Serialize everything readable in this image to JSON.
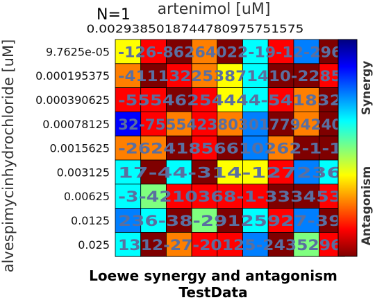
{
  "chart_data": {
    "type": "heatmap",
    "annotation": "N=1",
    "xlabel": "artenimol [uM]",
    "ylabel": "alvespimycinhydrochloride [uM]",
    "caption_line1": "Loewe synergy and antagonism",
    "caption_line2": "TestData",
    "x_tick_labels": [
      "0.00...",
      "0.00...",
      "0.00...",
      "0.00...",
      "0.00...",
      "0.00...",
      "0.0...",
      "0.57",
      "0.575"
    ],
    "x_tick_label_overlap": "0.0029385018744780975751575",
    "y_tick_labels": [
      "9.7625e-05",
      "0.000195375",
      "0.000390625",
      "0.00078125",
      "0.0015625",
      "0.003125",
      "0.00625",
      "0.0125",
      "0.025"
    ],
    "colorbar_labels": {
      "top": "Synergy",
      "bottom": "Antagonism"
    },
    "color_scale": [
      "#00007f",
      "#0000ff",
      "#007fff",
      "#00ffff",
      "#7fff7f",
      "#ffff00",
      "#ff7f00",
      "#ff0000",
      "#7f0000"
    ],
    "cell_text_color": "#5a6fa0",
    "cell_values": [
      [
        "-12",
        "6",
        "-8",
        "6",
        "26",
        "40",
        "22",
        "-19",
        "-12",
        "2",
        "96"
      ],
      [
        "-41",
        "11",
        "32",
        "25",
        "38",
        "7",
        "14",
        "10",
        "-22",
        "85"
      ],
      [
        "-55",
        "54",
        "62",
        "5",
        "44",
        "4",
        "-54",
        "18",
        "32"
      ],
      [
        "32",
        "-75",
        "55",
        "42",
        "38",
        "0",
        "30",
        "17",
        "-79",
        "24",
        "40"
      ],
      [
        "-26",
        "24",
        "18",
        "56",
        "61",
        "0",
        "26",
        "2",
        "-1",
        "-1"
      ],
      [
        "17",
        "-4",
        "4",
        "-31",
        "4",
        "-12",
        "7",
        "23",
        "6"
      ],
      [
        "-3",
        "-4",
        "2",
        "10",
        "36",
        "8",
        "-1",
        "-33",
        "34",
        "53"
      ],
      [
        "23",
        "6",
        "-3",
        "8",
        "-2",
        "9",
        "12",
        "5",
        "9",
        "27",
        "-39"
      ],
      [
        "13",
        "12",
        "-2",
        "7",
        "-2",
        "0",
        "12",
        "5",
        "-24",
        "35",
        "296"
      ]
    ],
    "cell_labels": [
      [
        "-126",
        "-8",
        "6264",
        "0",
        "22",
        "-19-12",
        "-2",
        "96"
      ],
      [
        "-41",
        "11",
        "32",
        "25387",
        "14",
        "10",
        "-22",
        "85"
      ],
      [
        "-55",
        "5462",
        "54",
        "44",
        "4",
        "-54",
        "18",
        "32"
      ],
      [
        "32",
        "-75",
        "55",
        "42",
        "38",
        "03",
        "017",
        "79",
        "4240"
      ],
      [
        "-26",
        "24",
        "18",
        "56",
        "61",
        "0",
        "26",
        "2",
        "-1",
        "-1"
      ],
      [
        "17",
        "-4",
        "4",
        "-314",
        "-12",
        "7",
        "23",
        "6"
      ],
      [
        "-3",
        "-4",
        "2",
        "10",
        "36",
        "8",
        "-1",
        "-33",
        "34",
        "53"
      ],
      [
        "23",
        "6",
        "-3",
        "8",
        "-2",
        "91",
        "25",
        "927",
        "-39"
      ],
      [
        "13",
        "12",
        "-27",
        "-20",
        "12",
        "5",
        "-2",
        "435",
        "296"
      ]
    ],
    "cells": [
      [
        5,
        7,
        8,
        6,
        8,
        3,
        7,
        2,
        8
      ],
      [
        6,
        8,
        7,
        6,
        5,
        3,
        8,
        8,
        7
      ],
      [
        7,
        7,
        8,
        7,
        5,
        3,
        7,
        6,
        8
      ],
      [
        1,
        7,
        6,
        7,
        6,
        2,
        8,
        6,
        8
      ],
      [
        6,
        6,
        8,
        7,
        8,
        2,
        6,
        8,
        8
      ],
      [
        3,
        8,
        3,
        8,
        5,
        5,
        7,
        2,
        3
      ],
      [
        3,
        4,
        7,
        7,
        7,
        7,
        8,
        8,
        7
      ],
      [
        2,
        3,
        8,
        4,
        8,
        3,
        7,
        2,
        8
      ],
      [
        3,
        8,
        6,
        7,
        7,
        2,
        8,
        4,
        7
      ]
    ]
  }
}
